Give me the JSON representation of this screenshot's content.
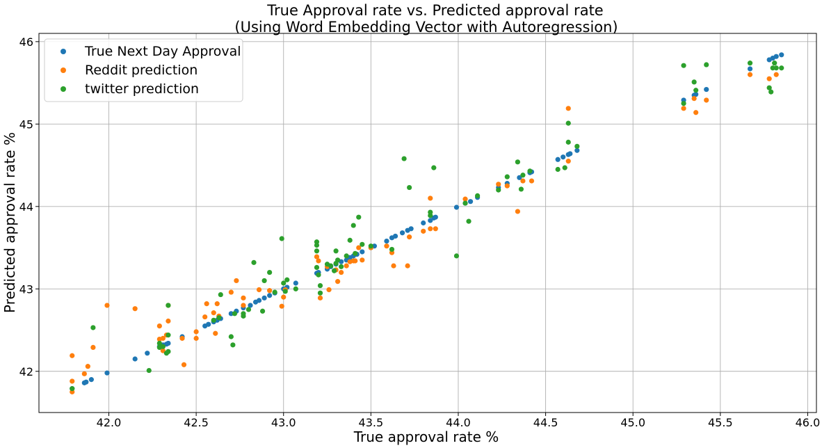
{
  "chart_data": {
    "type": "scatter",
    "title": "True Approval rate vs. Predicted approval rate",
    "subtitle": "(Using Word Embedding Vector with Autoregression)",
    "xlabel": "True approval rate %",
    "ylabel": "Predicted approval rate %",
    "xlim": [
      41.6,
      46.05
    ],
    "ylim": [
      41.5,
      46.1
    ],
    "xticks": [
      "42.0",
      "42.5",
      "43.0",
      "43.5",
      "44.0",
      "44.5",
      "45.0",
      "45.5",
      "46.0"
    ],
    "yticks": [
      "42",
      "43",
      "44",
      "45",
      "46"
    ],
    "grid": true,
    "legend_position": "top-left",
    "series": [
      {
        "name": "True Next Day Approval",
        "color": "#1f77b4",
        "points": [
          [
            41.79,
            41.79
          ],
          [
            41.86,
            41.86
          ],
          [
            41.87,
            41.87
          ],
          [
            41.9,
            41.9
          ],
          [
            41.99,
            41.98
          ],
          [
            42.15,
            42.15
          ],
          [
            42.22,
            42.22
          ],
          [
            42.29,
            42.3
          ],
          [
            42.31,
            42.32
          ],
          [
            42.33,
            42.33
          ],
          [
            42.34,
            42.34
          ],
          [
            42.42,
            42.42
          ],
          [
            42.55,
            42.55
          ],
          [
            42.57,
            42.57
          ],
          [
            42.6,
            42.6
          ],
          [
            42.62,
            42.62
          ],
          [
            42.64,
            42.64
          ],
          [
            42.7,
            42.7
          ],
          [
            42.73,
            42.73
          ],
          [
            42.77,
            42.77
          ],
          [
            42.81,
            42.8
          ],
          [
            42.84,
            42.84
          ],
          [
            42.86,
            42.86
          ],
          [
            42.89,
            42.89
          ],
          [
            42.92,
            42.92
          ],
          [
            42.95,
            42.95
          ],
          [
            43.0,
            43.0
          ],
          [
            43.02,
            43.02
          ],
          [
            43.07,
            43.07
          ],
          [
            43.19,
            43.19
          ],
          [
            43.2,
            43.2
          ],
          [
            43.25,
            43.24
          ],
          [
            43.27,
            43.27
          ],
          [
            43.3,
            43.3
          ],
          [
            43.33,
            43.33
          ],
          [
            43.36,
            43.35
          ],
          [
            43.38,
            43.38
          ],
          [
            43.4,
            43.4
          ],
          [
            43.42,
            43.42
          ],
          [
            43.45,
            43.45
          ],
          [
            43.5,
            43.5
          ],
          [
            43.52,
            43.52
          ],
          [
            43.59,
            43.58
          ],
          [
            43.62,
            43.62
          ],
          [
            43.64,
            43.64
          ],
          [
            43.68,
            43.68
          ],
          [
            43.71,
            43.71
          ],
          [
            43.73,
            43.73
          ],
          [
            43.8,
            43.8
          ],
          [
            43.84,
            43.83
          ],
          [
            43.86,
            43.86
          ],
          [
            43.87,
            43.87
          ],
          [
            43.99,
            43.99
          ],
          [
            44.04,
            44.04
          ],
          [
            44.07,
            44.06
          ],
          [
            44.11,
            44.11
          ],
          [
            44.23,
            44.23
          ],
          [
            44.28,
            44.28
          ],
          [
            44.35,
            44.35
          ],
          [
            44.41,
            44.41
          ],
          [
            44.42,
            44.42
          ],
          [
            44.57,
            44.57
          ],
          [
            44.6,
            44.6
          ],
          [
            44.63,
            44.63
          ],
          [
            44.64,
            44.64
          ],
          [
            44.68,
            44.68
          ],
          [
            45.29,
            45.29
          ],
          [
            45.35,
            45.35
          ],
          [
            45.36,
            45.36
          ],
          [
            45.42,
            45.42
          ],
          [
            45.67,
            45.67
          ],
          [
            45.78,
            45.78
          ],
          [
            45.8,
            45.8
          ],
          [
            45.82,
            45.82
          ],
          [
            45.85,
            45.84
          ]
        ]
      },
      {
        "name": "Reddit prediction",
        "color": "#ff7f0e",
        "points": [
          [
            41.79,
            42.19
          ],
          [
            41.79,
            41.88
          ],
          [
            41.79,
            41.75
          ],
          [
            41.86,
            41.97
          ],
          [
            41.88,
            42.06
          ],
          [
            41.91,
            42.29
          ],
          [
            41.99,
            42.8
          ],
          [
            42.15,
            42.76
          ],
          [
            42.29,
            42.55
          ],
          [
            42.29,
            42.39
          ],
          [
            42.31,
            42.4
          ],
          [
            42.31,
            42.25
          ],
          [
            42.33,
            42.44
          ],
          [
            42.34,
            42.61
          ],
          [
            42.34,
            42.8
          ],
          [
            42.42,
            42.4
          ],
          [
            42.43,
            42.08
          ],
          [
            42.5,
            42.48
          ],
          [
            42.5,
            42.4
          ],
          [
            42.55,
            42.66
          ],
          [
            42.56,
            42.82
          ],
          [
            42.6,
            42.71
          ],
          [
            42.61,
            42.46
          ],
          [
            42.62,
            42.82
          ],
          [
            42.63,
            42.67
          ],
          [
            42.7,
            42.96
          ],
          [
            42.73,
            43.1
          ],
          [
            42.77,
            42.89
          ],
          [
            42.77,
            42.8
          ],
          [
            42.86,
            42.99
          ],
          [
            42.92,
            42.98
          ],
          [
            42.99,
            42.79
          ],
          [
            43.0,
            42.9
          ],
          [
            43.01,
            42.99
          ],
          [
            43.19,
            43.39
          ],
          [
            43.2,
            43.34
          ],
          [
            43.21,
            42.89
          ],
          [
            43.25,
            43.27
          ],
          [
            43.26,
            42.99
          ],
          [
            43.3,
            43.23
          ],
          [
            43.31,
            43.09
          ],
          [
            43.33,
            43.2
          ],
          [
            43.36,
            43.28
          ],
          [
            43.38,
            43.33
          ],
          [
            43.4,
            43.34
          ],
          [
            43.41,
            43.34
          ],
          [
            43.43,
            43.5
          ],
          [
            43.45,
            43.35
          ],
          [
            43.5,
            43.5
          ],
          [
            43.59,
            43.52
          ],
          [
            43.62,
            43.44
          ],
          [
            43.63,
            43.28
          ],
          [
            43.71,
            43.28
          ],
          [
            43.72,
            43.63
          ],
          [
            43.8,
            43.7
          ],
          [
            43.84,
            43.73
          ],
          [
            43.84,
            44.1
          ],
          [
            43.87,
            43.73
          ],
          [
            44.04,
            44.09
          ],
          [
            44.23,
            44.27
          ],
          [
            44.28,
            44.25
          ],
          [
            44.34,
            43.94
          ],
          [
            44.37,
            44.31
          ],
          [
            44.42,
            44.31
          ],
          [
            44.63,
            45.19
          ],
          [
            44.63,
            44.55
          ],
          [
            45.29,
            45.19
          ],
          [
            45.35,
            45.31
          ],
          [
            45.36,
            45.14
          ],
          [
            45.42,
            45.29
          ],
          [
            45.67,
            45.6
          ],
          [
            45.78,
            45.55
          ],
          [
            45.82,
            45.6
          ]
        ]
      },
      {
        "name": "twitter prediction",
        "color": "#2ca02c",
        "points": [
          [
            41.79,
            41.79
          ],
          [
            41.91,
            42.53
          ],
          [
            42.23,
            42.01
          ],
          [
            42.29,
            42.29
          ],
          [
            42.29,
            42.34
          ],
          [
            42.31,
            42.3
          ],
          [
            42.33,
            42.22
          ],
          [
            42.34,
            42.24
          ],
          [
            42.34,
            42.44
          ],
          [
            42.34,
            42.8
          ],
          [
            42.6,
            42.62
          ],
          [
            42.63,
            42.65
          ],
          [
            42.64,
            42.93
          ],
          [
            42.7,
            42.42
          ],
          [
            42.71,
            42.32
          ],
          [
            42.72,
            42.7
          ],
          [
            42.77,
            42.67
          ],
          [
            42.77,
            42.7
          ],
          [
            42.8,
            42.75
          ],
          [
            42.83,
            43.32
          ],
          [
            42.88,
            42.73
          ],
          [
            42.89,
            43.1
          ],
          [
            42.92,
            43.2
          ],
          [
            42.95,
            42.96
          ],
          [
            42.99,
            43.61
          ],
          [
            43.0,
            43.07
          ],
          [
            43.01,
            42.97
          ],
          [
            43.02,
            43.11
          ],
          [
            43.07,
            43.0
          ],
          [
            43.19,
            43.57
          ],
          [
            43.19,
            43.53
          ],
          [
            43.19,
            43.46
          ],
          [
            43.19,
            43.26
          ],
          [
            43.2,
            43.17
          ],
          [
            43.21,
            43.04
          ],
          [
            43.21,
            42.95
          ],
          [
            43.25,
            43.3
          ],
          [
            43.27,
            43.28
          ],
          [
            43.29,
            43.22
          ],
          [
            43.3,
            43.31
          ],
          [
            43.3,
            43.46
          ],
          [
            43.31,
            43.35
          ],
          [
            43.33,
            43.27
          ],
          [
            43.36,
            43.4
          ],
          [
            43.38,
            43.59
          ],
          [
            43.4,
            43.77
          ],
          [
            43.41,
            43.43
          ],
          [
            43.43,
            43.87
          ],
          [
            43.45,
            43.54
          ],
          [
            43.5,
            43.52
          ],
          [
            43.62,
            43.48
          ],
          [
            43.69,
            44.58
          ],
          [
            43.72,
            44.23
          ],
          [
            43.84,
            43.89
          ],
          [
            43.84,
            43.93
          ],
          [
            43.86,
            44.47
          ],
          [
            43.99,
            43.4
          ],
          [
            44.04,
            44.04
          ],
          [
            44.06,
            43.82
          ],
          [
            44.11,
            44.13
          ],
          [
            44.23,
            44.2
          ],
          [
            44.28,
            44.36
          ],
          [
            44.34,
            44.54
          ],
          [
            44.36,
            44.21
          ],
          [
            44.37,
            44.38
          ],
          [
            44.41,
            44.43
          ],
          [
            44.57,
            44.45
          ],
          [
            44.61,
            44.47
          ],
          [
            44.63,
            44.78
          ],
          [
            44.63,
            45.01
          ],
          [
            44.68,
            44.73
          ],
          [
            45.29,
            45.71
          ],
          [
            45.29,
            45.25
          ],
          [
            45.35,
            45.51
          ],
          [
            45.36,
            45.41
          ],
          [
            45.42,
            45.72
          ],
          [
            45.67,
            45.74
          ],
          [
            45.78,
            45.44
          ],
          [
            45.79,
            45.39
          ],
          [
            45.8,
            45.68
          ],
          [
            45.81,
            45.74
          ],
          [
            45.82,
            45.68
          ],
          [
            45.85,
            45.68
          ]
        ]
      }
    ]
  }
}
